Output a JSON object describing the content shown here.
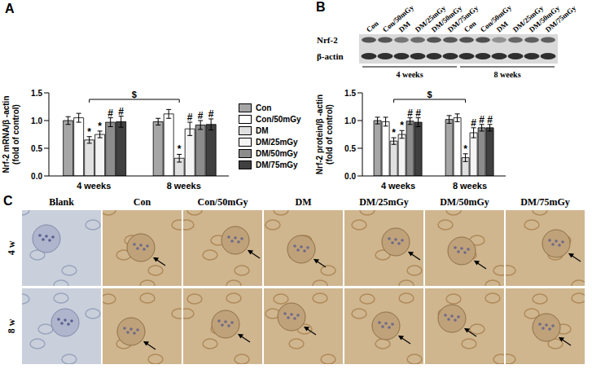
{
  "panel_labels": [
    "A",
    "B",
    "C"
  ],
  "chart_data": [
    {
      "type": "bar",
      "ylabel": "Nrf-2 mRNA/β -actin (fold of control)",
      "categories": [
        "4 weeks",
        "8 weeks"
      ],
      "series": [
        {
          "name": "Con",
          "color": "#a6a6a6",
          "values": [
            1.0,
            0.98
          ],
          "errors": [
            0.07,
            0.06
          ],
          "marks": [
            null,
            null
          ]
        },
        {
          "name": "Con/50mGy",
          "color": "#ffffff",
          "values": [
            1.05,
            1.12
          ],
          "errors": [
            0.08,
            0.08
          ],
          "marks": [
            null,
            null
          ]
        },
        {
          "name": "DM",
          "color": "#e0e0e0",
          "values": [
            0.65,
            0.32
          ],
          "errors": [
            0.06,
            0.07
          ],
          "marks": [
            "*",
            "*"
          ]
        },
        {
          "name": "DM/25mGy",
          "color": "#f4f4f4",
          "values": [
            0.75,
            0.85
          ],
          "errors": [
            0.06,
            0.12
          ],
          "marks": [
            "*",
            "#"
          ]
        },
        {
          "name": "DM/50mGy",
          "color": "#8c8c8c",
          "values": [
            0.97,
            0.92
          ],
          "errors": [
            0.08,
            0.08
          ],
          "marks": [
            "#",
            "#"
          ]
        },
        {
          "name": "DM/75mGy",
          "color": "#404040",
          "values": [
            0.98,
            0.93
          ],
          "errors": [
            0.1,
            0.1
          ],
          "marks": [
            "#",
            "#"
          ]
        }
      ],
      "ylim": [
        0,
        1.5
      ],
      "yticks": [
        {
          "value": 0,
          "label": "0.0"
        },
        0.5,
        {
          "value": 1,
          "label": "1.0"
        },
        1.5
      ],
      "legend": "right",
      "bracket": {
        "text": "$",
        "series": "DM"
      }
    },
    {
      "type": "bar",
      "ylabel": "Nrf-2 protein/β -actin (fold of control)",
      "categories": [
        "4 weeks",
        "8 weeks"
      ],
      "series": [
        {
          "name": "Con",
          "color": "#a6a6a6",
          "values": [
            1.0,
            1.02
          ],
          "errors": [
            0.06,
            0.07
          ],
          "marks": [
            null,
            null
          ]
        },
        {
          "name": "Con/50mGy",
          "color": "#ffffff",
          "values": [
            0.98,
            1.05
          ],
          "errors": [
            0.08,
            0.07
          ],
          "marks": [
            null,
            null
          ]
        },
        {
          "name": "DM",
          "color": "#e0e0e0",
          "values": [
            0.63,
            0.33
          ],
          "errors": [
            0.06,
            0.07
          ],
          "marks": [
            "*",
            "*"
          ]
        },
        {
          "name": "DM/25mGy",
          "color": "#f4f4f4",
          "values": [
            0.75,
            0.78
          ],
          "errors": [
            0.07,
            0.09
          ],
          "marks": [
            "*",
            "#"
          ]
        },
        {
          "name": "DM/50mGy",
          "color": "#8c8c8c",
          "values": [
            0.99,
            0.87
          ],
          "errors": [
            0.06,
            0.06
          ],
          "marks": [
            "#",
            "#"
          ]
        },
        {
          "name": "DM/75mGy",
          "color": "#404040",
          "values": [
            0.97,
            0.87
          ],
          "errors": [
            0.08,
            0.06
          ],
          "marks": [
            "#",
            "#"
          ]
        }
      ],
      "ylim": [
        0,
        1.5
      ],
      "yticks": [
        {
          "value": 0,
          "label": "0.0"
        },
        0.5,
        {
          "value": 1,
          "label": "1.0"
        },
        1.5
      ],
      "bracket": {
        "text": "$",
        "series": "DM"
      }
    }
  ],
  "blot": {
    "lanes": [
      "Con",
      "Con/50mGy",
      "DM",
      "DM/25mGy",
      "DM/50mGy",
      "DM/75mGy",
      "Con",
      "Con/50mGy",
      "DM",
      "DM/25mGy",
      "DM/50mGy",
      "DM/75mGy"
    ],
    "rows": [
      "Nrf-2",
      "β-actin"
    ],
    "groups": [
      "4 weeks",
      "8 weeks"
    ]
  },
  "micrographs": {
    "columns": [
      "Blank",
      "Con",
      "Con/50mGy",
      "DM",
      "DM/25mGy",
      "DM/50mGy",
      "DM/75mGy"
    ],
    "rows": [
      "4 w",
      "8 w"
    ]
  }
}
